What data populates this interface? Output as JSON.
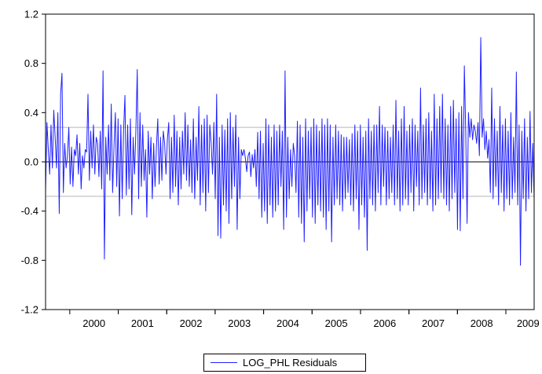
{
  "chart_data": {
    "type": "line",
    "title": "",
    "xlabel": "",
    "ylabel": "",
    "ylim": [
      -1.2,
      1.2
    ],
    "xlim": [
      "1999-07",
      "2009-08"
    ],
    "y_ticks": [
      "1.2",
      "0.8",
      "0.4",
      "0.0",
      "-0.4",
      "-0.8",
      "-1.2"
    ],
    "y_tick_values": [
      1.2,
      0.8,
      0.4,
      0.0,
      -0.4,
      -0.8,
      -1.2
    ],
    "x_ticks": [
      "2000",
      "2001",
      "2002",
      "2003",
      "2004",
      "2005",
      "2006",
      "2007",
      "2008",
      "2009"
    ],
    "reference_lines": [
      0.28,
      -0.28
    ],
    "zero_line": 0.0,
    "grid": false,
    "legend_position": "bottom-center",
    "colors": {
      "series": "#1f1fff",
      "zero_line": "#000000",
      "reference_lines": "#b8b8b8"
    },
    "series": [
      {
        "name": "LOG_PHL Residuals",
        "start": "1999-07",
        "frequency": "weekly",
        "values": [
          -0.24,
          0.32,
          0.1,
          -0.1,
          0.3,
          -0.05,
          0.42,
          0.2,
          -0.05,
          0.4,
          -0.42,
          0.55,
          0.72,
          -0.25,
          0.15,
          -0.05,
          0.05,
          0.28,
          -0.18,
          0.12,
          -0.2,
          0.1,
          0.05,
          0.22,
          -0.1,
          0.15,
          -0.22,
          0.05,
          -0.05,
          0.1,
          0.08,
          0.55,
          -0.15,
          0.25,
          -0.05,
          0.3,
          -0.1,
          0.2,
          0.15,
          -0.12,
          0.25,
          -0.22,
          0.74,
          -0.79,
          0.2,
          -0.1,
          0.3,
          -0.15,
          0.47,
          -0.25,
          0.12,
          0.4,
          -0.2,
          0.35,
          -0.44,
          0.3,
          -0.3,
          0.25,
          0.54,
          -0.27,
          0.3,
          -0.22,
          0.35,
          -0.43,
          0.2,
          -0.1,
          0.25,
          0.75,
          -0.3,
          0.4,
          -0.2,
          0.3,
          -0.15,
          0.1,
          -0.45,
          0.25,
          -0.1,
          0.2,
          -0.3,
          0.15,
          -0.2,
          0.12,
          0.35,
          -0.18,
          0.2,
          -0.15,
          0.25,
          0.15,
          -0.1,
          0.18,
          0.32,
          -0.3,
          0.2,
          -0.25,
          0.38,
          -0.2,
          0.25,
          -0.35,
          0.2,
          -0.22,
          0.25,
          -0.1,
          0.4,
          -0.15,
          0.3,
          -0.2,
          0.18,
          -0.25,
          0.35,
          -0.3,
          0.2,
          -0.15,
          0.45,
          -0.35,
          0.3,
          -0.25,
          0.35,
          -0.4,
          0.38,
          -0.25,
          0.3,
          0.15,
          -0.1,
          0.32,
          -0.3,
          0.55,
          -0.6,
          0.2,
          -0.62,
          0.3,
          -0.35,
          0.26,
          -0.4,
          0.35,
          -0.5,
          0.4,
          -0.3,
          0.28,
          -0.2,
          0.38,
          -0.55,
          0.2,
          -0.3,
          0.1,
          0.05,
          0.1,
          0.03,
          -0.08,
          0.05,
          0.08,
          -0.12,
          0.06,
          -0.05,
          0.1,
          -0.2,
          0.24,
          -0.3,
          0.25,
          -0.45,
          0.15,
          -0.4,
          0.35,
          -0.5,
          0.3,
          -0.35,
          0.2,
          -0.45,
          0.3,
          -0.4,
          0.25,
          -0.35,
          0.3,
          -0.2,
          0.25,
          -0.55,
          0.74,
          -0.45,
          0.2,
          -0.3,
          0.1,
          -0.2,
          0.15,
          0.05,
          -0.25,
          0.33,
          -0.45,
          0.3,
          -0.5,
          0.2,
          -0.65,
          0.35,
          -0.4,
          0.25,
          -0.3,
          0.28,
          -0.45,
          0.35,
          -0.5,
          0.3,
          -0.35,
          0.25,
          -0.4,
          0.35,
          -0.45,
          0.3,
          -0.55,
          0.35,
          -0.4,
          0.3,
          -0.65,
          0.2,
          -0.35,
          0.3,
          -0.3,
          0.25,
          -0.35,
          0.22,
          -0.4,
          0.2,
          -0.3,
          0.2,
          -0.25,
          0.18,
          -0.35,
          0.23,
          -0.4,
          0.3,
          -0.3,
          0.25,
          -0.55,
          0.3,
          -0.35,
          0.2,
          -0.45,
          0.25,
          -0.72,
          0.35,
          -0.3,
          0.25,
          -0.35,
          0.3,
          -0.4,
          0.3,
          -0.25,
          0.45,
          -0.35,
          0.3,
          -0.2,
          0.28,
          -0.35,
          0.25,
          -0.3,
          0.2,
          -0.25,
          0.3,
          -0.35,
          0.5,
          -0.3,
          0.25,
          -0.4,
          0.35,
          -0.35,
          0.45,
          -0.3,
          0.25,
          -0.35,
          0.3,
          -0.25,
          0.35,
          -0.4,
          0.3,
          -0.2,
          0.25,
          -0.35,
          0.6,
          -0.3,
          0.3,
          -0.25,
          0.35,
          -0.35,
          0.4,
          -0.3,
          0.25,
          -0.4,
          0.55,
          -0.35,
          0.35,
          -0.3,
          0.45,
          -0.25,
          0.55,
          -0.3,
          0.35,
          -0.35,
          0.3,
          -0.4,
          0.45,
          -0.3,
          0.5,
          -0.25,
          0.35,
          -0.55,
          0.4,
          -0.56,
          0.45,
          -0.3,
          0.78,
          0.25,
          -0.5,
          0.4,
          0.2,
          0.35,
          0.18,
          0.3,
          0.25,
          0.15,
          0.32,
          0.05,
          1.01,
          0.2,
          0.35,
          0.1,
          0.25,
          0.03,
          0.18,
          -0.25,
          0.6,
          -0.3,
          0.35,
          -0.2,
          0.25,
          -0.35,
          0.45,
          -0.25,
          0.3,
          -0.4,
          0.35,
          -0.3,
          0.25,
          -0.35,
          0.4,
          -0.3,
          0.2,
          -0.25,
          0.73,
          -0.35,
          0.3,
          -0.84,
          0.25,
          -0.3,
          0.35,
          -0.4,
          0.2,
          -0.3,
          0.41,
          -0.25,
          0.15,
          -0.3
        ]
      }
    ]
  }
}
